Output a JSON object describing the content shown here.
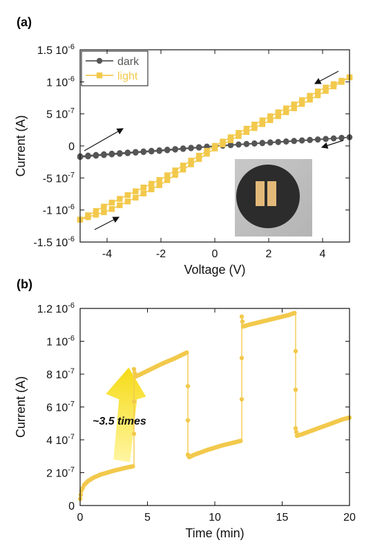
{
  "chart_data": [
    {
      "panel": "(a)",
      "type": "line",
      "xlabel": "Voltage (V)",
      "ylabel": "Current (A)",
      "xlim": [
        -5,
        5
      ],
      "ylim": [
        -1.5e-06,
        1.5e-06
      ],
      "xticks": [
        -4,
        -2,
        0,
        2,
        4
      ],
      "xtick_labels": [
        "-4",
        "-2",
        "0",
        "2",
        "4"
      ],
      "yticks": [
        -1.5e-06,
        -1e-06,
        -5e-07,
        0,
        5e-07,
        1e-06,
        1.5e-06
      ],
      "ytick_labels": [
        {
          "mant": "-1.5 10",
          "exp": "-6"
        },
        {
          "mant": "-1 10",
          "exp": "-6"
        },
        {
          "mant": "-5 10",
          "exp": "-7"
        },
        {
          "mant": "0",
          "exp": ""
        },
        {
          "mant": "5 10",
          "exp": "-7"
        },
        {
          "mant": "1 10",
          "exp": "-6"
        },
        {
          "mant": "1.5 10",
          "exp": "-6"
        }
      ],
      "legend_position": "top-left",
      "grid": false,
      "inset": "photo of device",
      "series": [
        {
          "name": "dark",
          "color": "#555555",
          "marker": "circle",
          "x": [
            -5,
            -4,
            -3,
            -2,
            -1,
            0,
            1,
            2,
            3,
            4,
            5
          ],
          "forward": [
            -1.6e-07,
            -1.25e-07,
            -9.5e-08,
            -6.5e-08,
            -3.2e-08,
            0,
            2.8e-08,
            5.5e-08,
            8.2e-08,
            1.08e-07,
            1.35e-07
          ],
          "reverse": [
            -1.75e-07,
            -1.4e-07,
            -1.08e-07,
            -7.8e-08,
            -4.2e-08,
            -8e-09,
            2.2e-08,
            4.8e-08,
            7.5e-08,
            1.02e-07,
            1.35e-07
          ]
        },
        {
          "name": "light",
          "color": "#F2C94C",
          "marker": "square",
          "x": [
            -5,
            -4,
            -3,
            -2,
            -1,
            0,
            1,
            2,
            3,
            4,
            5
          ],
          "forward": [
            -1.15e-06,
            -9.2e-07,
            -7.2e-07,
            -5.2e-07,
            -2.6e-07,
            0,
            2.3e-07,
            4.5e-07,
            6.6e-07,
            8.9e-07,
            1.07e-06
          ],
          "reverse": [
            -1.15e-06,
            -1.02e-06,
            -8.2e-07,
            -6e-07,
            -3.2e-07,
            -4e-08,
            1.8e-07,
            3.9e-07,
            6e-07,
            8.3e-07,
            1.07e-06
          ]
        }
      ]
    },
    {
      "panel": "(b)",
      "type": "line",
      "xlabel": "Time (min)",
      "ylabel": "Current (A)",
      "xlim": [
        0,
        20
      ],
      "ylim": [
        0,
        1.2e-06
      ],
      "xticks": [
        0,
        5,
        10,
        15,
        20
      ],
      "xtick_labels": [
        "0",
        "5",
        "10",
        "15",
        "20"
      ],
      "yticks": [
        0,
        2e-07,
        4e-07,
        6e-07,
        8e-07,
        1e-06,
        1.2e-06
      ],
      "ytick_labels": [
        {
          "mant": "0",
          "exp": ""
        },
        {
          "mant": "2 10",
          "exp": "-7"
        },
        {
          "mant": "4 10",
          "exp": "-7"
        },
        {
          "mant": "6 10",
          "exp": "-7"
        },
        {
          "mant": "8 10",
          "exp": "-7"
        },
        {
          "mant": "1 10",
          "exp": "-6"
        },
        {
          "mant": "1.2 10",
          "exp": "-6"
        }
      ],
      "annotation": "~3.5 times",
      "grid": false,
      "series": [
        {
          "color": "#F2C94C",
          "x": [
            0,
            0.1,
            0.3,
            0.6,
            1,
            1.5,
            2,
            2.5,
            3,
            3.5,
            4,
            4,
            4.1,
            4.5,
            5,
            5.5,
            6,
            6.5,
            7,
            7.5,
            8,
            8,
            8.1,
            8.5,
            9,
            9.5,
            10,
            10.5,
            11,
            11.5,
            12,
            12,
            12.1,
            12.5,
            13,
            13.5,
            14,
            14.5,
            15,
            15.5,
            16,
            16,
            16.1,
            16.5,
            17,
            17.5,
            18,
            18.5,
            19,
            19.5,
            20
          ],
          "y": [
            4e-08,
            9e-08,
            1.25e-07,
            1.5e-07,
            1.7e-07,
            1.88e-07,
            2e-07,
            2.12e-07,
            2.22e-07,
            2.32e-07,
            2.4e-07,
            8.3e-07,
            7.85e-07,
            8e-07,
            8.2e-07,
            8.4e-07,
            8.6e-07,
            8.78e-07,
            8.95e-07,
            9.15e-07,
            9.35e-07,
            3.1e-07,
            2.95e-07,
            3.1e-07,
            3.25e-07,
            3.4e-07,
            3.52e-07,
            3.65e-07,
            3.75e-07,
            3.85e-07,
            3.95e-07,
            1.15e-06,
            1.09e-06,
            1.1e-06,
            1.11e-06,
            1.12e-06,
            1.13e-06,
            1.14e-06,
            1.15e-06,
            1.16e-06,
            1.175e-06,
            4.7e-07,
            4.25e-07,
            4.35e-07,
            4.5e-07,
            4.65e-07,
            4.8e-07,
            4.95e-07,
            5.1e-07,
            5.25e-07,
            5.35e-07
          ]
        }
      ]
    }
  ]
}
